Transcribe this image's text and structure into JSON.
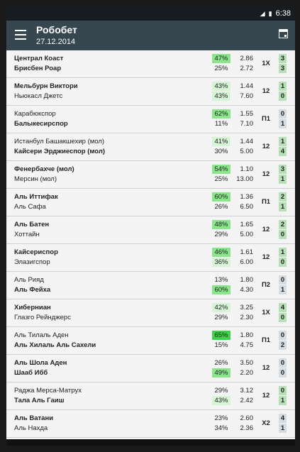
{
  "status": {
    "time": "6:38",
    "icons": [
      "signal-icon",
      "battery-icon"
    ]
  },
  "app": {
    "title": "Робобет",
    "date": "27.12.2014"
  },
  "colors": {
    "appbar": "#37474f",
    "pct_high": "#8be58b",
    "pct_top": "#3fd14a",
    "pct_mid": "#d6f5d6",
    "score_win": "#b7e0b7",
    "score_draw": "#d5dde2"
  },
  "matches": [
    {
      "home": "Централ Коаст",
      "away": "Брисбен Роар",
      "home_bold": true,
      "away_bold": true,
      "home_pct": "47%",
      "away_pct": "25%",
      "home_pct_style": "high",
      "away_pct_style": "none",
      "home_odd": "2.86",
      "away_odd": "2.72",
      "bet": "1X",
      "home_score": "3",
      "away_score": "3",
      "home_score_style": "win",
      "away_score_style": "win"
    },
    {
      "home": "Мельбурн Виктори",
      "away": "Ньюкасл Джетс",
      "home_bold": true,
      "away_bold": false,
      "home_pct": "43%",
      "away_pct": "43%",
      "home_pct_style": "mid",
      "away_pct_style": "mid",
      "home_odd": "1.44",
      "away_odd": "7.60",
      "bet": "12",
      "home_score": "1",
      "away_score": "0",
      "home_score_style": "win",
      "away_score_style": "win"
    },
    {
      "home": "Карабюкспор",
      "away": "Балыкесирспор",
      "home_bold": false,
      "away_bold": true,
      "home_pct": "62%",
      "away_pct": "11%",
      "home_pct_style": "high",
      "away_pct_style": "none",
      "home_odd": "1.55",
      "away_odd": "7.10",
      "bet": "П1",
      "home_score": "0",
      "away_score": "1",
      "home_score_style": "draw",
      "away_score_style": "draw"
    },
    {
      "home": "Истанбул Башакшехир (мол)",
      "away": "Кайсери Эрджиеспор (мол)",
      "home_bold": false,
      "away_bold": true,
      "home_pct": "41%",
      "away_pct": "30%",
      "home_pct_style": "mid",
      "away_pct_style": "none",
      "home_odd": "1.44",
      "away_odd": "5.00",
      "bet": "12",
      "home_score": "1",
      "away_score": "4",
      "home_score_style": "win",
      "away_score_style": "win"
    },
    {
      "home": "Фенербахче (мол)",
      "away": "Мерсин (мол)",
      "home_bold": true,
      "away_bold": false,
      "home_pct": "54%",
      "away_pct": "25%",
      "home_pct_style": "high",
      "away_pct_style": "none",
      "home_odd": "1.10",
      "away_odd": "13.00",
      "bet": "12",
      "home_score": "3",
      "away_score": "1",
      "home_score_style": "win",
      "away_score_style": "win"
    },
    {
      "home": "Аль Иттифак",
      "away": "Аль Сафа",
      "home_bold": true,
      "away_bold": false,
      "home_pct": "60%",
      "away_pct": "26%",
      "home_pct_style": "high",
      "away_pct_style": "none",
      "home_odd": "1.36",
      "away_odd": "6.50",
      "bet": "П1",
      "home_score": "2",
      "away_score": "1",
      "home_score_style": "win",
      "away_score_style": "win"
    },
    {
      "home": "Аль Батен",
      "away": "Хоттайн",
      "home_bold": true,
      "away_bold": false,
      "home_pct": "48%",
      "away_pct": "29%",
      "home_pct_style": "high",
      "away_pct_style": "none",
      "home_odd": "1.65",
      "away_odd": "5.00",
      "bet": "12",
      "home_score": "2",
      "away_score": "0",
      "home_score_style": "win",
      "away_score_style": "win"
    },
    {
      "home": "Кайсериспор",
      "away": "Элазигспор",
      "home_bold": true,
      "away_bold": false,
      "home_pct": "46%",
      "away_pct": "36%",
      "home_pct_style": "high",
      "away_pct_style": "mid",
      "home_odd": "1.61",
      "away_odd": "6.00",
      "bet": "12",
      "home_score": "1",
      "away_score": "0",
      "home_score_style": "win",
      "away_score_style": "win"
    },
    {
      "home": "Аль Рияд",
      "away": "Аль Фейха",
      "home_bold": false,
      "away_bold": true,
      "home_pct": "13%",
      "away_pct": "60%",
      "home_pct_style": "none",
      "away_pct_style": "high",
      "home_odd": "1.80",
      "away_odd": "4.30",
      "bet": "П2",
      "home_score": "0",
      "away_score": "1",
      "home_score_style": "draw",
      "away_score_style": "draw"
    },
    {
      "home": "Хиберниан",
      "away": "Глазго Рейнджерс",
      "home_bold": true,
      "away_bold": false,
      "home_pct": "42%",
      "away_pct": "29%",
      "home_pct_style": "mid",
      "away_pct_style": "none",
      "home_odd": "3.25",
      "away_odd": "2.30",
      "bet": "1X",
      "home_score": "4",
      "away_score": "0",
      "home_score_style": "win",
      "away_score_style": "win"
    },
    {
      "home": "Аль Тилаль Аден",
      "away": "Аль Хилаль Аль Сахели",
      "home_bold": false,
      "away_bold": true,
      "home_pct": "65%",
      "away_pct": "15%",
      "home_pct_style": "top",
      "away_pct_style": "none",
      "home_odd": "1.80",
      "away_odd": "4.75",
      "bet": "П1",
      "home_score": "0",
      "away_score": "2",
      "home_score_style": "draw",
      "away_score_style": "draw"
    },
    {
      "home": "Аль Шола Аден",
      "away": "Шааб Ибб",
      "home_bold": true,
      "away_bold": true,
      "home_pct": "26%",
      "away_pct": "49%",
      "home_pct_style": "none",
      "away_pct_style": "high",
      "home_odd": "3.50",
      "away_odd": "2.20",
      "bet": "12",
      "home_score": "0",
      "away_score": "0",
      "home_score_style": "draw",
      "away_score_style": "draw"
    },
    {
      "home": "Раджа Мерса-Матрух",
      "away": "Тала Аль Гаиш",
      "home_bold": false,
      "away_bold": true,
      "home_pct": "29%",
      "away_pct": "43%",
      "home_pct_style": "none",
      "away_pct_style": "mid",
      "home_odd": "3.12",
      "away_odd": "2.42",
      "bet": "12",
      "home_score": "0",
      "away_score": "1",
      "home_score_style": "win",
      "away_score_style": "win"
    },
    {
      "home": "Аль Ватани",
      "away": "Аль Нахда",
      "home_bold": true,
      "away_bold": false,
      "home_pct": "23%",
      "away_pct": "34%",
      "home_pct_style": "none",
      "away_pct_style": "none",
      "home_odd": "2.60",
      "away_odd": "2.36",
      "bet": "X2",
      "home_score": "4",
      "away_score": "1",
      "home_score_style": "draw",
      "away_score_style": "draw"
    }
  ]
}
